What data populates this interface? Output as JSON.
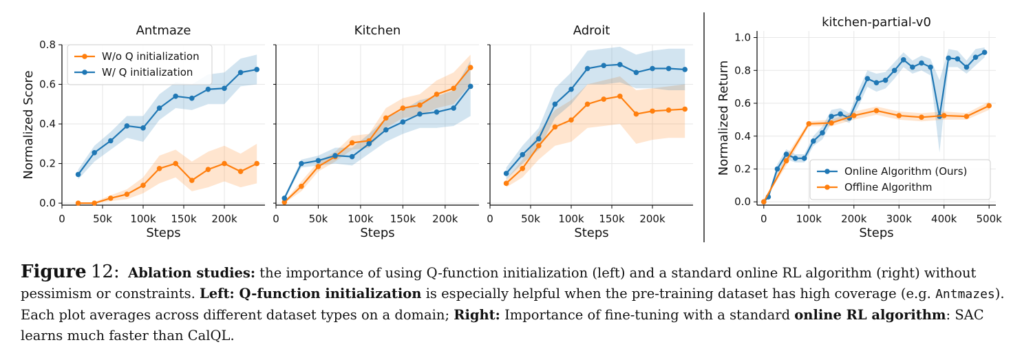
{
  "chart_data": [
    {
      "type": "line",
      "title": "Antmaze",
      "xlabel": "Steps",
      "ylabel": "Normalized Score",
      "xlim": [
        0,
        250000
      ],
      "ylim": [
        -0.01,
        0.8
      ],
      "xticks": [
        0,
        50000,
        100000,
        150000,
        200000
      ],
      "xtick_labels": [
        "0",
        "50k",
        "100k",
        "150k",
        "200k"
      ],
      "yticks": [
        0.0,
        0.2,
        0.4,
        0.6,
        0.8
      ],
      "ytick_labels": [
        "0.0",
        "0.2",
        "0.4",
        "0.6",
        "0.8"
      ],
      "grid": true,
      "legend_position": "top-left",
      "series": [
        {
          "name": "W/o Q initialization",
          "color": "#ff7f0e",
          "x": [
            20000,
            40000,
            60000,
            80000,
            100000,
            120000,
            140000,
            160000,
            180000,
            200000,
            220000,
            240000
          ],
          "values": [
            0.0,
            0.0,
            0.025,
            0.045,
            0.09,
            0.175,
            0.2,
            0.115,
            0.17,
            0.2,
            0.16,
            0.2
          ],
          "lower": [
            0.0,
            0.0,
            0.01,
            0.02,
            0.05,
            0.1,
            0.13,
            0.06,
            0.08,
            0.11,
            0.08,
            0.1
          ],
          "upper": [
            0.0,
            0.005,
            0.04,
            0.07,
            0.13,
            0.24,
            0.27,
            0.21,
            0.26,
            0.29,
            0.25,
            0.3
          ]
        },
        {
          "name": "W/ Q initialization",
          "color": "#1f77b4",
          "x": [
            20000,
            40000,
            60000,
            80000,
            100000,
            120000,
            140000,
            160000,
            180000,
            200000,
            220000,
            240000
          ],
          "values": [
            0.145,
            0.255,
            0.315,
            0.39,
            0.38,
            0.48,
            0.54,
            0.53,
            0.575,
            0.58,
            0.66,
            0.675
          ],
          "lower": [
            0.12,
            0.21,
            0.27,
            0.33,
            0.31,
            0.42,
            0.48,
            0.47,
            0.5,
            0.5,
            0.59,
            0.6
          ],
          "upper": [
            0.17,
            0.29,
            0.36,
            0.44,
            0.44,
            0.55,
            0.61,
            0.6,
            0.65,
            0.66,
            0.73,
            0.75
          ]
        }
      ]
    },
    {
      "type": "line",
      "title": "Kitchen",
      "xlabel": "Steps",
      "ylabel": "",
      "xlim": [
        0,
        240000
      ],
      "ylim": [
        -0.01,
        0.8
      ],
      "xticks": [
        0,
        50000,
        100000,
        150000,
        200000
      ],
      "xtick_labels": [
        "0",
        "50k",
        "100k",
        "150k",
        "200k"
      ],
      "grid": true,
      "series": [
        {
          "name": "W/o Q initialization",
          "color": "#ff7f0e",
          "x": [
            10000,
            30000,
            50000,
            70000,
            90000,
            110000,
            130000,
            150000,
            170000,
            190000,
            210000,
            230000
          ],
          "values": [
            0.005,
            0.085,
            0.185,
            0.235,
            0.305,
            0.315,
            0.43,
            0.48,
            0.495,
            0.55,
            0.58,
            0.685
          ],
          "lower": [
            0.0,
            0.06,
            0.16,
            0.21,
            0.27,
            0.28,
            0.38,
            0.43,
            0.44,
            0.48,
            0.5,
            0.6
          ],
          "upper": [
            0.01,
            0.11,
            0.21,
            0.26,
            0.34,
            0.35,
            0.48,
            0.53,
            0.55,
            0.62,
            0.66,
            0.75
          ]
        },
        {
          "name": "W/ Q initialization",
          "color": "#1f77b4",
          "x": [
            10000,
            30000,
            50000,
            70000,
            90000,
            110000,
            130000,
            150000,
            170000,
            190000,
            210000,
            230000
          ],
          "values": [
            0.025,
            0.2,
            0.215,
            0.24,
            0.235,
            0.3,
            0.37,
            0.41,
            0.45,
            0.46,
            0.48,
            0.59
          ],
          "lower": [
            0.015,
            0.18,
            0.19,
            0.2,
            0.19,
            0.25,
            0.31,
            0.35,
            0.38,
            0.38,
            0.39,
            0.44
          ],
          "upper": [
            0.035,
            0.22,
            0.24,
            0.28,
            0.28,
            0.35,
            0.43,
            0.47,
            0.52,
            0.54,
            0.57,
            0.72
          ]
        }
      ]
    },
    {
      "type": "line",
      "title": "Adroit",
      "xlabel": "Steps",
      "ylabel": "",
      "xlim": [
        0,
        250000
      ],
      "ylim": [
        -0.01,
        0.8
      ],
      "xticks": [
        0,
        50000,
        100000,
        150000,
        200000
      ],
      "xtick_labels": [
        "0",
        "50k",
        "100k",
        "150k",
        "200k"
      ],
      "grid": true,
      "series": [
        {
          "name": "W/o Q initialization",
          "color": "#ff7f0e",
          "x": [
            20000,
            40000,
            60000,
            80000,
            100000,
            120000,
            140000,
            160000,
            180000,
            200000,
            220000,
            240000
          ],
          "values": [
            0.1,
            0.175,
            0.29,
            0.385,
            0.42,
            0.5,
            0.525,
            0.54,
            0.45,
            0.465,
            0.47,
            0.475
          ],
          "lower": [
            0.08,
            0.13,
            0.22,
            0.29,
            0.31,
            0.38,
            0.39,
            0.4,
            0.3,
            0.32,
            0.33,
            0.33
          ],
          "upper": [
            0.12,
            0.22,
            0.36,
            0.47,
            0.52,
            0.6,
            0.62,
            0.64,
            0.57,
            0.58,
            0.59,
            0.6
          ]
        },
        {
          "name": "W/ Q initialization",
          "color": "#1f77b4",
          "x": [
            20000,
            40000,
            60000,
            80000,
            100000,
            120000,
            140000,
            160000,
            180000,
            200000,
            220000,
            240000
          ],
          "values": [
            0.15,
            0.245,
            0.325,
            0.5,
            0.575,
            0.68,
            0.695,
            0.7,
            0.66,
            0.68,
            0.68,
            0.675
          ],
          "lower": [
            0.12,
            0.2,
            0.27,
            0.43,
            0.5,
            0.6,
            0.6,
            0.61,
            0.58,
            0.58,
            0.57,
            0.57
          ],
          "upper": [
            0.18,
            0.29,
            0.38,
            0.58,
            0.66,
            0.77,
            0.78,
            0.79,
            0.75,
            0.77,
            0.78,
            0.78
          ]
        }
      ]
    },
    {
      "type": "line",
      "title": "kitchen-partial-v0",
      "xlabel": "Steps",
      "ylabel": "Normalized Return",
      "xlim": [
        -15000,
        515000
      ],
      "ylim": [
        -0.02,
        1.04
      ],
      "xticks": [
        0,
        100000,
        200000,
        300000,
        400000,
        500000
      ],
      "xtick_labels": [
        "0",
        "100k",
        "200k",
        "300k",
        "400k",
        "500k"
      ],
      "yticks": [
        0.0,
        0.2,
        0.4,
        0.6,
        0.8,
        1.0
      ],
      "ytick_labels": [
        "0.0",
        "0.2",
        "0.4",
        "0.6",
        "0.8",
        "1.0"
      ],
      "grid": true,
      "legend_position": "bottom-right",
      "series": [
        {
          "name": "Online Algorithm (Ours)",
          "color": "#1f77b4",
          "x": [
            0,
            10000,
            30000,
            50000,
            70000,
            90000,
            110000,
            130000,
            150000,
            170000,
            190000,
            210000,
            230000,
            250000,
            270000,
            290000,
            310000,
            330000,
            350000,
            370000,
            390000,
            410000,
            430000,
            450000,
            470000,
            490000
          ],
          "values": [
            0.0,
            0.03,
            0.2,
            0.29,
            0.265,
            0.265,
            0.37,
            0.42,
            0.52,
            0.535,
            0.51,
            0.63,
            0.75,
            0.725,
            0.74,
            0.8,
            0.865,
            0.82,
            0.845,
            0.82,
            0.52,
            0.875,
            0.87,
            0.82,
            0.88,
            0.91
          ],
          "lower": [
            0.0,
            0.02,
            0.17,
            0.26,
            0.24,
            0.24,
            0.34,
            0.38,
            0.48,
            0.5,
            0.48,
            0.58,
            0.7,
            0.67,
            0.69,
            0.75,
            0.82,
            0.78,
            0.8,
            0.77,
            0.3,
            0.82,
            0.82,
            0.78,
            0.83,
            0.88
          ],
          "upper": [
            0.0,
            0.04,
            0.23,
            0.32,
            0.29,
            0.29,
            0.4,
            0.46,
            0.56,
            0.57,
            0.54,
            0.68,
            0.8,
            0.78,
            0.79,
            0.85,
            0.91,
            0.86,
            0.89,
            0.87,
            0.74,
            0.93,
            0.92,
            0.86,
            0.93,
            0.94
          ]
        },
        {
          "name": "Offline Algorithm",
          "color": "#ff7f0e",
          "x": [
            0,
            50000,
            100000,
            150000,
            200000,
            250000,
            300000,
            350000,
            400000,
            450000,
            500000
          ],
          "values": [
            0.0,
            0.25,
            0.475,
            0.48,
            0.525,
            0.555,
            0.525,
            0.515,
            0.525,
            0.52,
            0.585
          ],
          "lower": [
            0.0,
            0.22,
            0.46,
            0.46,
            0.5,
            0.53,
            0.5,
            0.49,
            0.5,
            0.5,
            0.56
          ],
          "upper": [
            0.0,
            0.28,
            0.49,
            0.5,
            0.55,
            0.58,
            0.55,
            0.54,
            0.55,
            0.54,
            0.61
          ]
        }
      ]
    }
  ],
  "caption": {
    "figure_label": "Figure",
    "figure_number": "12:",
    "lead_bold": "Ablation studies:",
    "text_1": " the importance of using Q-function initialization (left) and a standard online RL algorithm (right) without pessimism or constraints. ",
    "left_bold": "Left:",
    "qinit_bold": " Q-function initialization",
    "text_2": " is especially helpful when the pre-training dataset has high coverage (e.g. ",
    "code_word": "Antmazes",
    "text_3": "). Each plot averages across different dataset types on a domain; ",
    "right_bold": "Right:",
    "text_4": " Importance of fine-tuning with a standard ",
    "online_bold": "online RL algorithm",
    "text_5": ": SAC learns much faster than CalQL."
  }
}
